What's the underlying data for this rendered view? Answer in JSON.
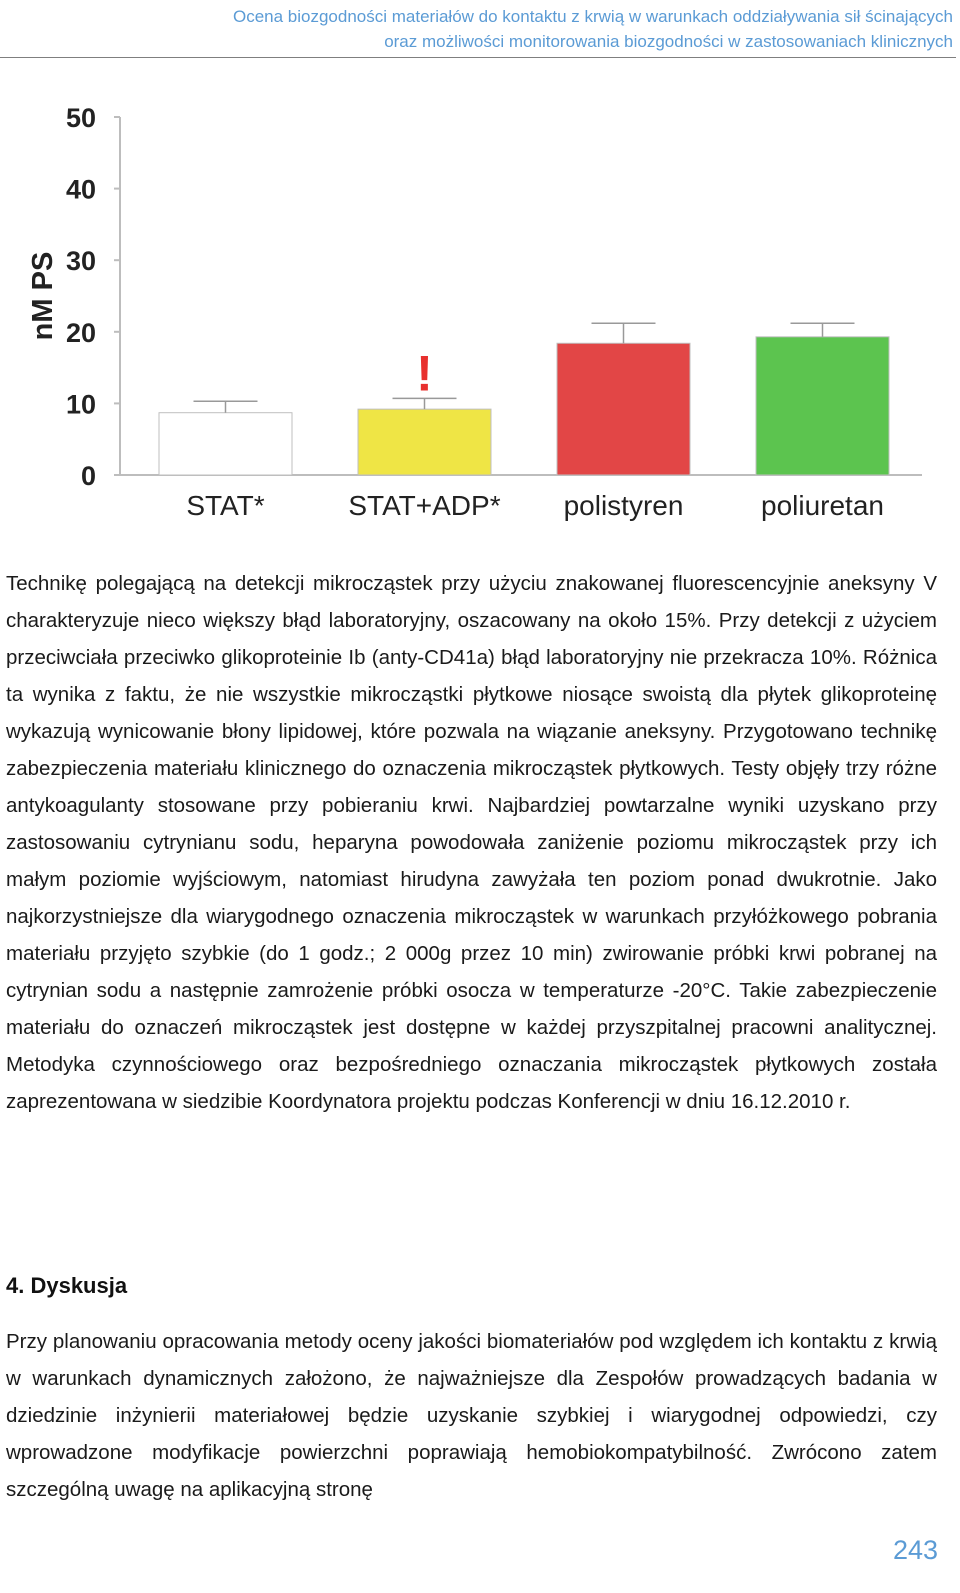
{
  "header": {
    "line1": "Ocena biozgodności materiałów do kontaktu z krwią w warunkach oddziaływania sił ścinających",
    "line2": "oraz możliwości monitorowania biozgodności w zastosowaniach klinicznych"
  },
  "chart_data": {
    "type": "bar",
    "ylabel": "nM PS",
    "ylim": [
      0,
      50
    ],
    "yticks": [
      0,
      10,
      20,
      30,
      40,
      50
    ],
    "categories": [
      "STAT*",
      "STAT+ADP*",
      "polistyren",
      "poliuretan"
    ],
    "values": [
      8.7,
      9.2,
      18.4,
      19.3
    ],
    "error": [
      1.6,
      1.5,
      2.8,
      1.9
    ],
    "colors": [
      "#ffffff",
      "#efe545",
      "#e24646",
      "#5cc44f"
    ],
    "annotation": {
      "text": "!",
      "category": "STAT+ADP*",
      "color": "#e8302e"
    },
    "grid": false
  },
  "paragraph1": "Technikę polegającą na detekcji mikrocząstek przy użyciu znakowanej fluorescencyjnie aneksyny V charakteryzuje nieco większy błąd laboratoryjny, oszacowany na około 15%. Przy detekcji z użyciem przeciwciała przeciwko glikoproteinie Ib (anty-CD41a) błąd laboratoryjny nie przekracza 10%. Różnica ta wynika z faktu, że nie wszystkie mikrocząstki płytkowe niosące swoistą dla płytek glikoproteinę wykazują wynicowanie błony lipidowej, które pozwala na wiązanie aneksyny. Przygotowano technikę zabezpieczenia materiału klinicznego do oznaczenia mikrocząstek płytkowych. Testy objęły trzy różne antykoagulanty stosowane przy pobieraniu krwi. Najbardziej powtarzalne wyniki uzyskano przy zastosowaniu cytrynianu sodu, heparyna powodowała zaniżenie poziomu mikrocząstek przy ich małym poziomie wyjściowym, natomiast hirudyna zawyżała ten poziom ponad dwukrotnie. Jako najkorzystniejsze dla wiarygodnego oznaczenia mikrocząstek w warunkach przyłóżkowego pobrania materiału przyjęto szybkie (do 1 godz.; 2 000g przez 10 min) zwirowanie próbki krwi pobranej na cytrynian sodu a następnie zamrożenie próbki osocza w temperaturze -20°C. Takie zabezpieczenie materiału do oznaczeń mikrocząstek jest dostępne w każdej przyszpitalnej pracowni analitycznej. Metodyka czynnościowego oraz bezpośredniego oznaczania mikrocząstek płytkowych została zaprezentowana w siedzibie Koordynatora projektu podczas Konferencji w dniu 16.12.2010 r.",
  "section": {
    "heading": "4.  Dyskusja"
  },
  "paragraph2": "Przy planowaniu opracowania metody oceny jakości biomateriałów pod względem ich kontaktu z krwią w warunkach dynamicznych założono, że najważniejsze dla Zespołów prowadzących badania w dziedzinie inżynierii materiałowej będzie uzyskanie szybkiej i wiarygodnej odpowiedzi, czy wprowadzone modyfikacje powierzchni poprawiają hemobiokompatybilność. Zwrócono zatem szczególną uwagę na aplikacyjną stronę",
  "page_number": "243"
}
